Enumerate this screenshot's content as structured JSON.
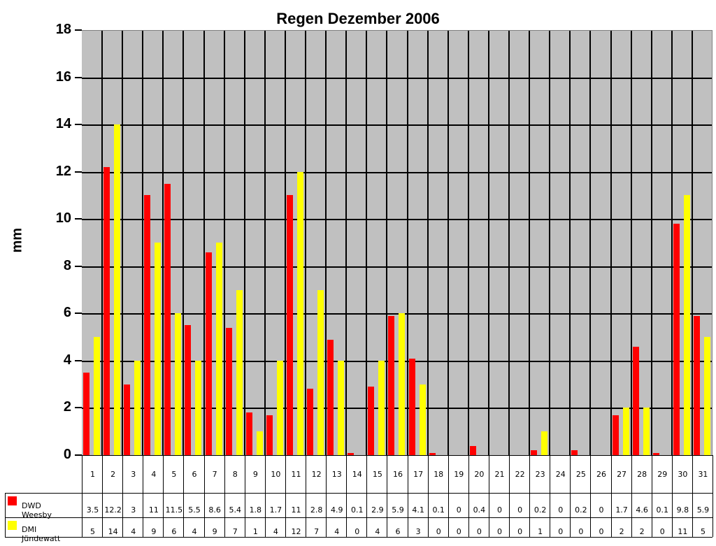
{
  "chart_data": {
    "type": "bar",
    "title": "Regen Dezember 2006",
    "xlabel": "",
    "ylabel": "mm",
    "ylim": [
      0,
      18
    ],
    "yticks": [
      0,
      2,
      4,
      6,
      8,
      10,
      12,
      14,
      16,
      18
    ],
    "grid": true,
    "legend_position": "data-table-left",
    "categories": [
      "1",
      "2",
      "3",
      "4",
      "5",
      "6",
      "7",
      "8",
      "9",
      "10",
      "11",
      "12",
      "13",
      "14",
      "15",
      "16",
      "17",
      "18",
      "19",
      "20",
      "21",
      "22",
      "23",
      "24",
      "25",
      "26",
      "27",
      "28",
      "29",
      "30",
      "31"
    ],
    "series": [
      {
        "name": "DWD Weesby",
        "color": "#ff0000",
        "values": [
          3.5,
          12.2,
          3,
          11,
          11.5,
          5.5,
          8.6,
          5.4,
          1.8,
          1.7,
          11,
          2.8,
          4.9,
          0.1,
          2.9,
          5.9,
          4.1,
          0.1,
          0,
          0.4,
          0,
          0,
          0.2,
          0,
          0.2,
          0,
          1.7,
          4.6,
          0.1,
          9.8,
          5.9
        ]
      },
      {
        "name": "DMI Jündewatt",
        "color": "#ffff00",
        "values": [
          5,
          14,
          4,
          9,
          6,
          4,
          9,
          7,
          1,
          4,
          12,
          7,
          4,
          0,
          4,
          6,
          3,
          0,
          0,
          0,
          0,
          0,
          1,
          0,
          0,
          0,
          2,
          2,
          0,
          11,
          5
        ]
      }
    ]
  }
}
